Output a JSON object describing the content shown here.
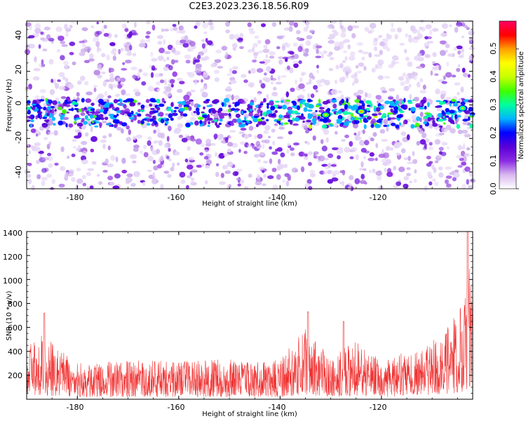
{
  "title": "C2E3.2023.236.18.56.R09",
  "chart_data": [
    {
      "type": "heatmap",
      "xlabel": "Height of straight line (km)",
      "ylabel": "Frequency (Hz)",
      "xlim": [
        -190,
        -102
      ],
      "ylim": [
        -50,
        50
      ],
      "x_ticks": [
        "-180",
        "-160",
        "-140",
        "-120"
      ],
      "x_tick_values": [
        -180,
        -160,
        -140,
        -120
      ],
      "y_ticks": [
        "-40",
        "-20",
        "0",
        "20",
        "40"
      ],
      "y_tick_values": [
        -40,
        -20,
        0,
        20,
        40
      ],
      "colorbar": {
        "label": "Normalized spectral amplitude",
        "range": [
          0,
          0.6
        ],
        "ticks": [
          "0.0",
          "0.1",
          "0.2",
          "0.3",
          "0.4",
          "0.5"
        ],
        "tick_values": [
          0.0,
          0.1,
          0.2,
          0.3,
          0.4,
          0.5
        ],
        "colors": [
          "#ffffff",
          "#d9b8f0",
          "#8a2be2",
          "#5a00d8",
          "#0000ff",
          "#00b4ff",
          "#00ffa0",
          "#40ff00",
          "#c8ff00",
          "#ffff00",
          "#ffa000",
          "#ff0000",
          "#ff0064"
        ]
      },
      "band_center_hz": -5,
      "band_peaks": [
        {
          "x": -131,
          "freq": -6,
          "amp": 0.45
        },
        {
          "x": -124,
          "freq": -4,
          "amp": 0.52
        },
        {
          "x": -104,
          "freq": -2,
          "amp": 0.38
        }
      ]
    },
    {
      "type": "line",
      "xlabel": "Height of straight line (km)",
      "ylabel": "SNR (10 * v/v)",
      "xlim": [
        -190,
        -102
      ],
      "ylim": [
        0,
        1400
      ],
      "x_ticks": [
        "-180",
        "-160",
        "-140",
        "-120"
      ],
      "x_tick_values": [
        -180,
        -160,
        -140,
        -120
      ],
      "y_ticks": [
        "200",
        "400",
        "600",
        "800",
        "1000",
        "1200",
        "1400"
      ],
      "y_tick_values": [
        200,
        400,
        600,
        800,
        1000,
        1200,
        1400
      ],
      "series": [
        {
          "name": "SNR",
          "color": "#f03030",
          "envelope_x": [
            -190,
            -187,
            -180,
            -170,
            -160,
            -150,
            -140,
            -135,
            -130,
            -125,
            -120,
            -115,
            -110,
            -106,
            -104,
            -103,
            -102
          ],
          "envelope_typical_max": [
            450,
            550,
            300,
            320,
            330,
            330,
            330,
            600,
            350,
            500,
            320,
            400,
            500,
            650,
            900,
            1400,
            700
          ],
          "envelope_typical_min": [
            30,
            30,
            20,
            20,
            20,
            20,
            20,
            40,
            20,
            30,
            20,
            30,
            40,
            50,
            60,
            80,
            60
          ],
          "peaks": [
            {
              "x": -186.5,
              "y": 720
            },
            {
              "x": -134.5,
              "y": 730
            },
            {
              "x": -127.5,
              "y": 650
            },
            {
              "x": -103,
              "y": 1400
            }
          ]
        }
      ]
    }
  ]
}
